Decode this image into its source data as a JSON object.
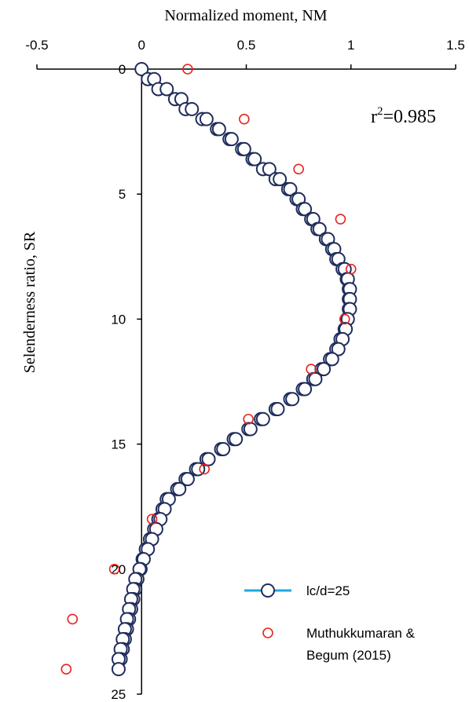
{
  "chart_data": {
    "type": "scatter",
    "title": "",
    "xlabel": "Normalized moment, NM",
    "ylabel": "Selenderness ratio, SR",
    "x_axis_position": "top",
    "y_axis_inverted": true,
    "xlim": [
      -0.5,
      1.5
    ],
    "ylim": [
      0,
      25
    ],
    "xticks": [
      "-0.5",
      "0",
      "0.5",
      "1",
      "1.5"
    ],
    "yticks": [
      "0",
      "5",
      "10",
      "15",
      "20",
      "25"
    ],
    "grid": false,
    "annotation": {
      "base": "r",
      "sup": "2",
      "rest": "=0.985"
    },
    "legend_position": "bottom-right",
    "series": [
      {
        "name": "lc/d=25",
        "marker": "circle-open",
        "line_color": "#1fa8e0",
        "marker_edge": "#1f2d5c",
        "points": [
          [
            0.0,
            0.0
          ],
          [
            0.03,
            0.4
          ],
          [
            0.06,
            0.4
          ],
          [
            0.08,
            0.8
          ],
          [
            0.12,
            0.8
          ],
          [
            0.16,
            1.2
          ],
          [
            0.19,
            1.2
          ],
          [
            0.21,
            1.6
          ],
          [
            0.24,
            1.6
          ],
          [
            0.29,
            2.0
          ],
          [
            0.31,
            2.0
          ],
          [
            0.36,
            2.4
          ],
          [
            0.37,
            2.4
          ],
          [
            0.42,
            2.8
          ],
          [
            0.43,
            2.8
          ],
          [
            0.48,
            3.2
          ],
          [
            0.49,
            3.2
          ],
          [
            0.53,
            3.6
          ],
          [
            0.54,
            3.6
          ],
          [
            0.58,
            4.0
          ],
          [
            0.61,
            4.0
          ],
          [
            0.64,
            4.4
          ],
          [
            0.66,
            4.4
          ],
          [
            0.7,
            4.8
          ],
          [
            0.71,
            4.8
          ],
          [
            0.74,
            5.2
          ],
          [
            0.75,
            5.2
          ],
          [
            0.77,
            5.6
          ],
          [
            0.78,
            5.6
          ],
          [
            0.81,
            6.0
          ],
          [
            0.82,
            6.0
          ],
          [
            0.84,
            6.4
          ],
          [
            0.85,
            6.4
          ],
          [
            0.88,
            6.8
          ],
          [
            0.89,
            6.8
          ],
          [
            0.91,
            7.2
          ],
          [
            0.92,
            7.2
          ],
          [
            0.93,
            7.6
          ],
          [
            0.94,
            7.6
          ],
          [
            0.96,
            8.0
          ],
          [
            0.97,
            8.0
          ],
          [
            0.98,
            8.4
          ],
          [
            0.985,
            8.4
          ],
          [
            0.99,
            8.8
          ],
          [
            0.995,
            8.8
          ],
          [
            0.99,
            9.2
          ],
          [
            0.995,
            9.2
          ],
          [
            0.99,
            9.6
          ],
          [
            0.995,
            9.6
          ],
          [
            0.98,
            10.0
          ],
          [
            0.985,
            10.0
          ],
          [
            0.97,
            10.4
          ],
          [
            0.975,
            10.4
          ],
          [
            0.95,
            10.8
          ],
          [
            0.96,
            10.8
          ],
          [
            0.93,
            11.2
          ],
          [
            0.94,
            11.2
          ],
          [
            0.9,
            11.6
          ],
          [
            0.91,
            11.6
          ],
          [
            0.86,
            12.0
          ],
          [
            0.87,
            12.0
          ],
          [
            0.82,
            12.4
          ],
          [
            0.83,
            12.4
          ],
          [
            0.77,
            12.8
          ],
          [
            0.78,
            12.8
          ],
          [
            0.71,
            13.2
          ],
          [
            0.72,
            13.2
          ],
          [
            0.64,
            13.6
          ],
          [
            0.65,
            13.6
          ],
          [
            0.57,
            14.0
          ],
          [
            0.58,
            14.0
          ],
          [
            0.51,
            14.4
          ],
          [
            0.52,
            14.4
          ],
          [
            0.44,
            14.8
          ],
          [
            0.45,
            14.8
          ],
          [
            0.38,
            15.2
          ],
          [
            0.39,
            15.2
          ],
          [
            0.31,
            15.6
          ],
          [
            0.32,
            15.6
          ],
          [
            0.26,
            16.0
          ],
          [
            0.27,
            16.0
          ],
          [
            0.21,
            16.4
          ],
          [
            0.22,
            16.4
          ],
          [
            0.17,
            16.8
          ],
          [
            0.18,
            16.8
          ],
          [
            0.12,
            17.2
          ],
          [
            0.13,
            17.2
          ],
          [
            0.1,
            17.6
          ],
          [
            0.11,
            17.6
          ],
          [
            0.08,
            18.0
          ],
          [
            0.09,
            18.0
          ],
          [
            0.06,
            18.4
          ],
          [
            0.07,
            18.4
          ],
          [
            0.04,
            18.8
          ],
          [
            0.05,
            18.8
          ],
          [
            0.02,
            19.2
          ],
          [
            0.03,
            19.2
          ],
          [
            0.005,
            19.6
          ],
          [
            0.01,
            19.6
          ],
          [
            -0.005,
            20.0
          ],
          [
            -0.01,
            20.0
          ],
          [
            -0.02,
            20.4
          ],
          [
            -0.03,
            20.4
          ],
          [
            -0.03,
            20.8
          ],
          [
            -0.04,
            20.8
          ],
          [
            -0.04,
            21.2
          ],
          [
            -0.05,
            21.2
          ],
          [
            -0.05,
            21.6
          ],
          [
            -0.06,
            21.6
          ],
          [
            -0.06,
            22.0
          ],
          [
            -0.07,
            22.0
          ],
          [
            -0.07,
            22.4
          ],
          [
            -0.08,
            22.4
          ],
          [
            -0.08,
            22.8
          ],
          [
            -0.09,
            22.8
          ],
          [
            -0.09,
            23.2
          ],
          [
            -0.1,
            23.2
          ],
          [
            -0.1,
            23.6
          ],
          [
            -0.11,
            23.6
          ],
          [
            -0.11,
            24.0
          ]
        ]
      },
      {
        "name": "Muthukkumaran & Begum (2015)",
        "marker": "circle-open",
        "marker_edge": "#e8231f",
        "points": [
          [
            0.22,
            0.0
          ],
          [
            0.49,
            2.0
          ],
          [
            0.75,
            4.0
          ],
          [
            0.95,
            6.0
          ],
          [
            1.0,
            8.0
          ],
          [
            0.97,
            10.0
          ],
          [
            0.81,
            12.0
          ],
          [
            0.51,
            14.0
          ],
          [
            0.3,
            16.0
          ],
          [
            0.05,
            18.0
          ],
          [
            -0.13,
            20.0
          ],
          [
            -0.33,
            22.0
          ],
          [
            -0.36,
            24.0
          ]
        ]
      }
    ]
  }
}
